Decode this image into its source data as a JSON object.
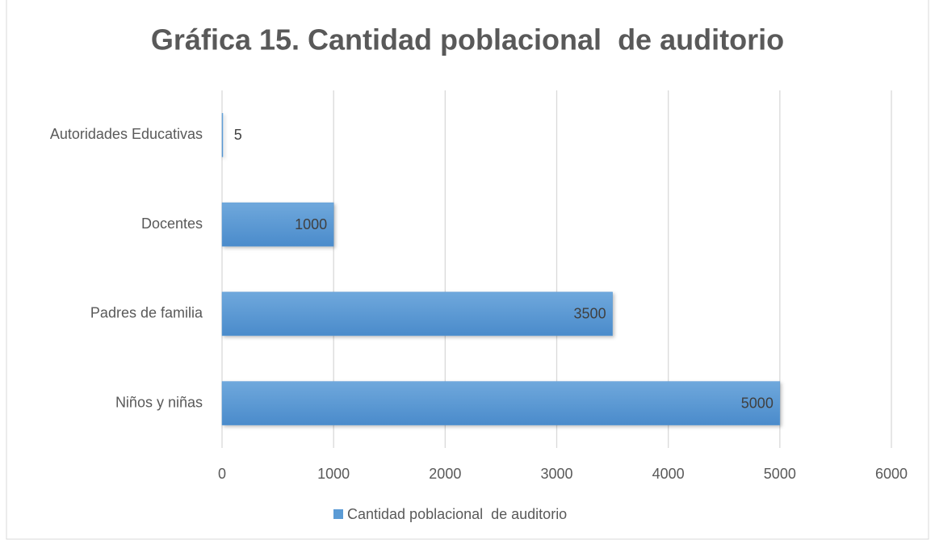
{
  "chart_data": {
    "type": "bar",
    "orientation": "horizontal",
    "title": "Gráfica 15. Cantidad poblacional  de auditorio",
    "categories": [
      "Autoridades Educativas",
      "Docentes",
      "Padres de familia",
      "Niños y niñas"
    ],
    "series": [
      {
        "name": "Cantidad poblacional  de auditorio",
        "color": "#5b9bd5",
        "values": [
          5,
          1000,
          3500,
          5000
        ]
      }
    ],
    "xlim": [
      0,
      6000
    ],
    "xticks": [
      0,
      1000,
      2000,
      3000,
      4000,
      5000,
      6000
    ],
    "grid": true,
    "legend": "bottom"
  }
}
